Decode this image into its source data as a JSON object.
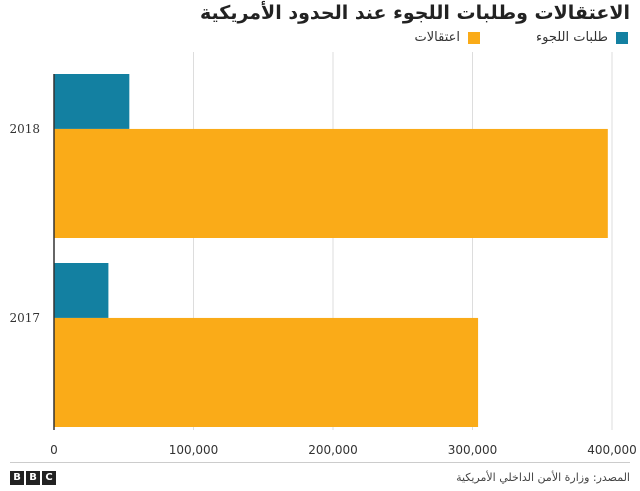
{
  "chart_data": {
    "type": "bar",
    "orientation": "horizontal",
    "title": "الاعتقالات وطلبات اللجوء عند الحدود الأمريكية",
    "categories": [
      "2018",
      "2017"
    ],
    "series": [
      {
        "name": "طلبات اللجوء",
        "color": "#1380A1",
        "values": [
          54000,
          39000
        ]
      },
      {
        "name": "اعتقالات",
        "color": "#FAAB18",
        "values": [
          397000,
          304000
        ]
      }
    ],
    "xlim": [
      0,
      400000
    ],
    "x_ticks": [
      0,
      100000,
      200000,
      300000,
      400000
    ],
    "x_tick_labels": [
      "0",
      "100,000",
      "200,000",
      "300,000",
      "400,000"
    ],
    "xlabel": "",
    "ylabel": "",
    "grid": true,
    "legend_position": "top-right"
  },
  "source_text": "المصدر: وزارة الأمن الداخلي الأمريكية",
  "logo": {
    "letters": [
      "B",
      "B",
      "C"
    ]
  }
}
